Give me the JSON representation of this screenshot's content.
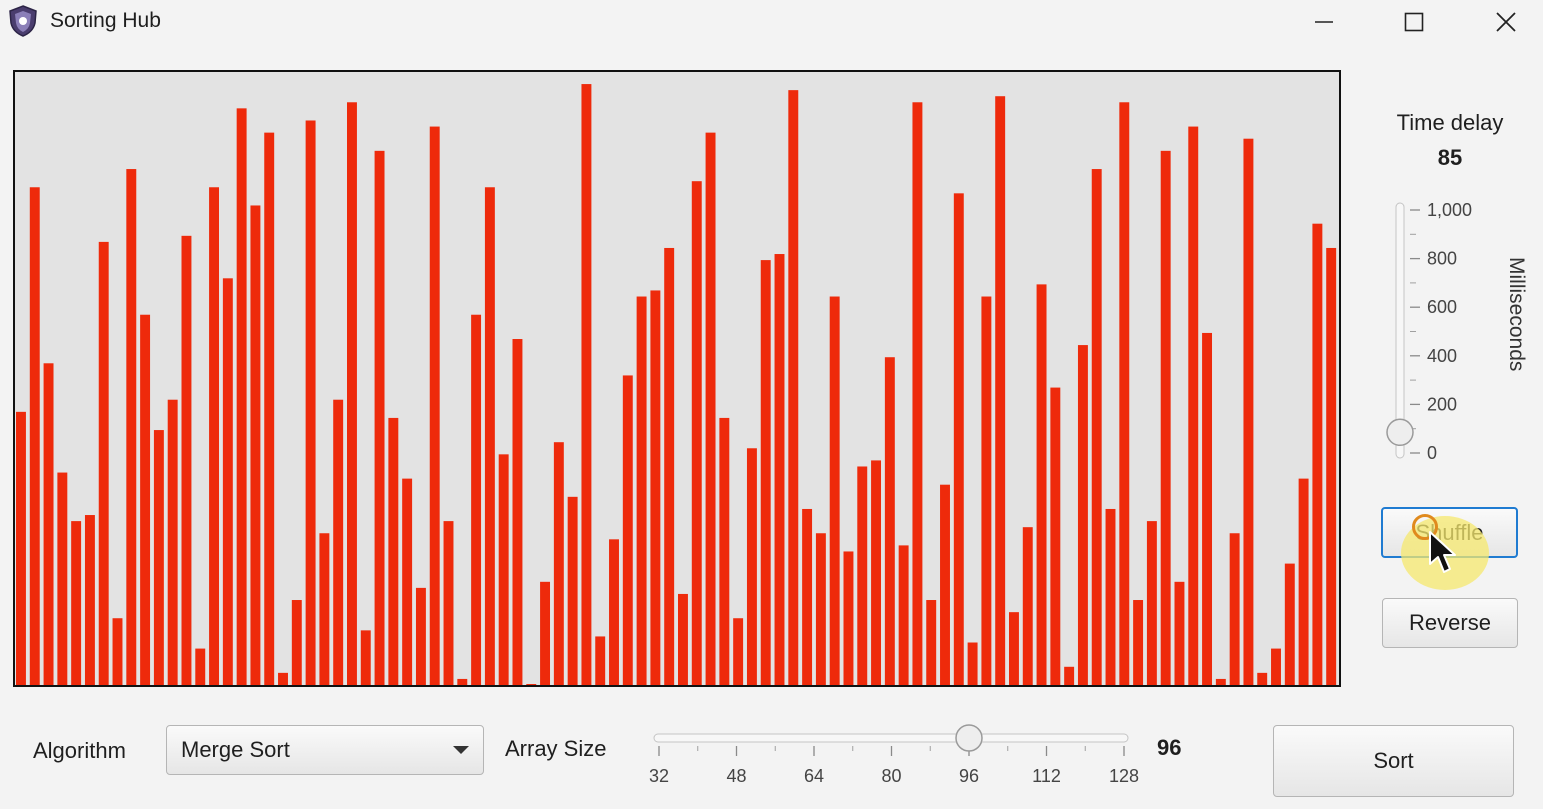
{
  "window": {
    "title": "Sorting Hub"
  },
  "controls": {
    "minimize_icon": "minimize-icon",
    "maximize_icon": "maximize-icon",
    "close_icon": "close-icon"
  },
  "side_panel": {
    "time_delay_label": "Time delay",
    "time_delay_value": "85",
    "slider_unit_label": "Milliseconds",
    "slider_ticks": [
      "1,000",
      "800",
      "600",
      "400",
      "200",
      "0"
    ],
    "slider_level_ms": 85,
    "slider_max_ms": 1000,
    "shuffle_label": "Shuffle",
    "reverse_label": "Reverse"
  },
  "bottom_bar": {
    "algorithm_label": "Algorithm",
    "algorithm_selected": "Merge Sort",
    "array_size_label": "Array Size",
    "array_size_value": "96",
    "array_size_ticks": [
      "32",
      "48",
      "64",
      "80",
      "96",
      "112",
      "128"
    ],
    "array_size_min": 32,
    "array_size_max": 128,
    "array_size_current": 96,
    "sort_label": "Sort"
  },
  "colors": {
    "bar": "#ee2a0b",
    "canvas_bg": "#e3e3e3",
    "accent": "#1f7bd1"
  },
  "chart_data": {
    "type": "bar",
    "values": [
      45,
      82,
      53,
      35,
      27,
      28,
      73,
      11,
      85,
      61,
      42,
      47,
      74,
      6,
      82,
      67,
      95,
      79,
      91,
      2,
      14,
      93,
      25,
      47,
      96,
      9,
      88,
      44,
      34,
      16,
      92,
      27,
      1,
      61,
      82,
      38,
      57,
      0,
      17,
      40,
      31,
      99,
      8,
      24,
      51,
      64,
      65,
      72,
      15,
      83,
      91,
      44,
      11,
      39,
      70,
      71,
      98,
      29,
      25,
      64,
      22,
      36,
      37,
      54,
      23,
      96,
      14,
      33,
      81,
      7,
      64,
      97,
      12,
      26,
      66,
      49,
      3,
      56,
      85,
      29,
      96,
      14,
      27,
      88,
      17,
      92,
      58,
      1,
      25,
      90,
      2,
      6,
      20,
      34,
      76,
      72
    ]
  }
}
